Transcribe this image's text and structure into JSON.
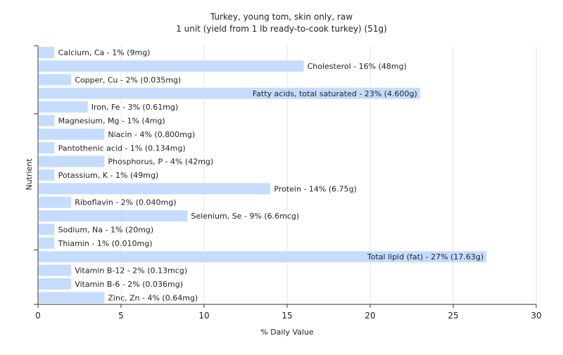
{
  "chart_data": {
    "type": "bar",
    "orientation": "horizontal",
    "title": "Turkey, young tom, skin only, raw",
    "subtitle": "1 unit (yield from 1 lb ready-to-cook turkey) (51g)",
    "xlabel": "% Daily Value",
    "ylabel": "Nutrient",
    "xlim": [
      0,
      30
    ],
    "xticks": [
      "0",
      "5",
      "10",
      "15",
      "20",
      "25",
      "30"
    ],
    "grid": true,
    "bar_color": "#c6dcff",
    "categories": [
      "Calcium, Ca",
      "Cholesterol",
      "Copper, Cu",
      "Fatty acids, total saturated",
      "Iron, Fe",
      "Magnesium, Mg",
      "Niacin",
      "Pantothenic acid",
      "Phosphorus, P",
      "Potassium, K",
      "Protein",
      "Riboflavin",
      "Selenium, Se",
      "Sodium, Na",
      "Thiamin",
      "Total lipid (fat)",
      "Vitamin B-12",
      "Vitamin B-6",
      "Zinc, Zn"
    ],
    "values": [
      1,
      16,
      2,
      23,
      3,
      1,
      4,
      1,
      4,
      1,
      14,
      2,
      9,
      1,
      1,
      27,
      2,
      2,
      4
    ],
    "labels": [
      "Calcium, Ca - 1% (9mg)",
      "Cholesterol - 16% (48mg)",
      "Copper, Cu - 2% (0.035mg)",
      "Fatty acids, total saturated - 23% (4.600g)",
      "Iron, Fe - 3% (0.61mg)",
      "Magnesium, Mg - 1% (4mg)",
      "Niacin - 4% (0.800mg)",
      "Pantothenic acid - 1% (0.134mg)",
      "Phosphorus, P - 4% (42mg)",
      "Potassium, K - 1% (49mg)",
      "Protein - 14% (6.75g)",
      "Riboflavin - 2% (0.040mg)",
      "Selenium, Se - 9% (6.6mcg)",
      "Sodium, Na - 1% (20mg)",
      "Thiamin - 1% (0.010mg)",
      "Total lipid (fat) - 27% (17.63g)",
      "Vitamin B-12 - 2% (0.13mcg)",
      "Vitamin B-6 - 2% (0.036mg)",
      "Zinc, Zn - 4% (0.64mg)"
    ]
  }
}
